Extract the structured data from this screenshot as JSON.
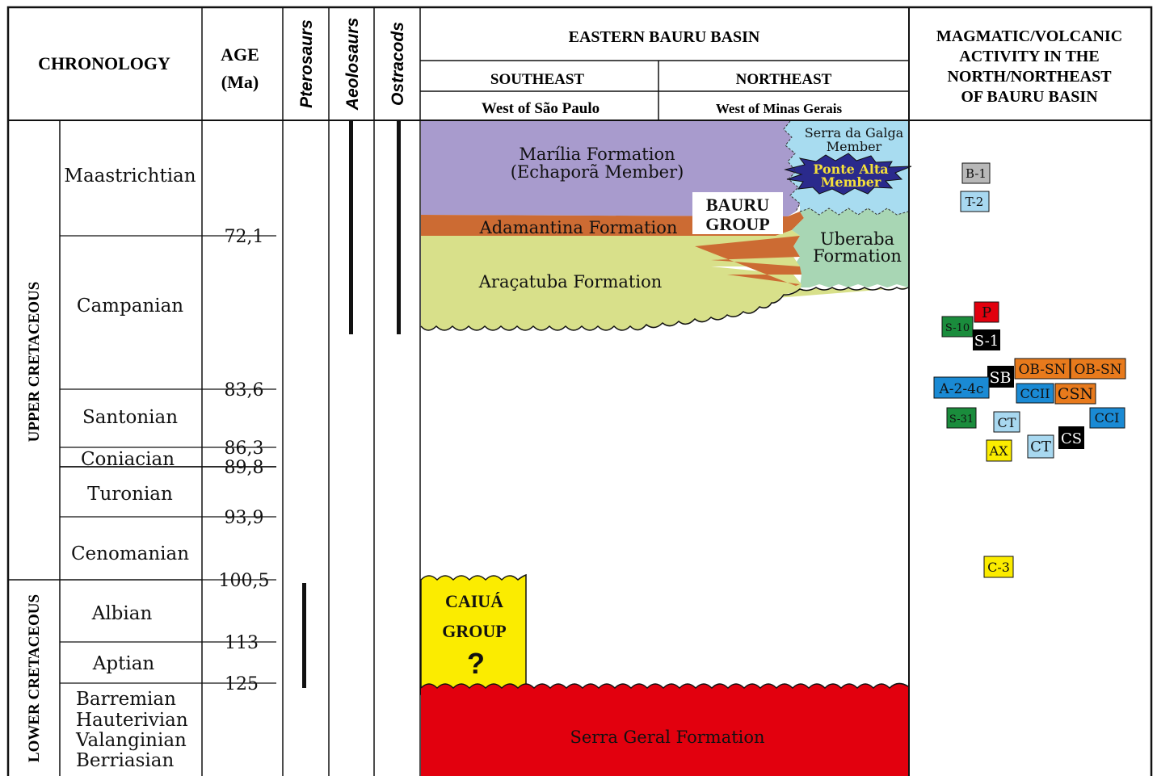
{
  "headers": {
    "chronology": "CHRONOLOGY",
    "age_line1": "AGE",
    "age_line2": "(Ma)",
    "pterosaurs": "Pterosaurs",
    "aeolosaurs": "Aeolosaurs",
    "ostracods": "Ostracods",
    "basin": "EASTERN BAURU BASIN",
    "southeast": "SOUTHEAST",
    "northeast": "NORTHEAST",
    "southeast_sub": "West of São Paulo",
    "northeast_sub": "West of Minas Gerais",
    "magmatic_1": "MAGMATIC/VOLCANIC",
    "magmatic_2": "ACTIVITY IN THE",
    "magmatic_3": "NORTH/NORTHEAST",
    "magmatic_4": "OF BAURU BASIN"
  },
  "epochs": {
    "upper": "UPPER CRETACEOUS",
    "lower": "LOWER CRETACEOUS"
  },
  "stages": {
    "maastrichtian": "Maastrichtian",
    "campanian": "Campanian",
    "santonian": "Santonian",
    "coniacian": "Coniacian",
    "turonian": "Turonian",
    "cenomanian": "Cenomanian",
    "albian": "Albian",
    "aptian": "Aptian",
    "barremian": "Barremian",
    "hauterivian": "Hauterivian",
    "valanginian": "Valanginian",
    "berriasian": "Berriasian"
  },
  "ages": {
    "a72": "72,1",
    "a83": "83,6",
    "a86": "86,3",
    "a89": "89,8",
    "a93": "93,9",
    "a100": "100,5",
    "a113": "113",
    "a125": "125"
  },
  "formations": {
    "marilia_1": "Marília Formation",
    "marilia_2": "(Echaporã Member)",
    "adamantina": "Adamantina Formation",
    "aracatuba": "Araçatuba Formation",
    "bauru_1": "BAURU",
    "bauru_2": "GROUP",
    "serra_galga_1": "Serra da Galga",
    "serra_galga_2": "Member",
    "ponte_alta_1": "Ponte Alta",
    "ponte_alta_2": "Member",
    "uberaba_1": "Uberaba",
    "uberaba_2": "Formation",
    "caiua_1": "CAIUÁ",
    "caiua_2": "GROUP",
    "caiua_q": "?",
    "serra_geral": "Serra Geral Formation"
  },
  "volcanic": {
    "b1": "B-1",
    "t2": "T-2",
    "p": "P",
    "s10": "S-10",
    "s1": "S-1",
    "sb": "SB",
    "obsn1": "OB-SN",
    "obsn2": "OB-SN",
    "a24c": "A-2-4c",
    "ccii": "CCII",
    "csn": "CSN",
    "s31": "S-31",
    "ct1": "CT",
    "cci": "CCI",
    "cs": "CS",
    "ax": "AX",
    "ct2": "CT",
    "c3": "C-3"
  },
  "colors": {
    "marilia": "#a89bcd",
    "adamantina": "#cc6b33",
    "aracatuba": "#d8e08a",
    "serra_galga": "#a8dcf0",
    "ponte_alta": "#2a2a8c",
    "ponte_alta_text": "#f5e03a",
    "uberaba": "#a8d6b4",
    "caiua": "#fbec00",
    "serra_geral": "#e2000e",
    "box_gray": "#b8b8b8",
    "box_light_blue": "#a8d8f0",
    "box_red": "#e2000e",
    "box_green": "#1a8c3c",
    "box_black": "#000000",
    "box_orange": "#e87a1c",
    "box_blue": "#1a8ad4",
    "box_yellow": "#fbec00"
  }
}
